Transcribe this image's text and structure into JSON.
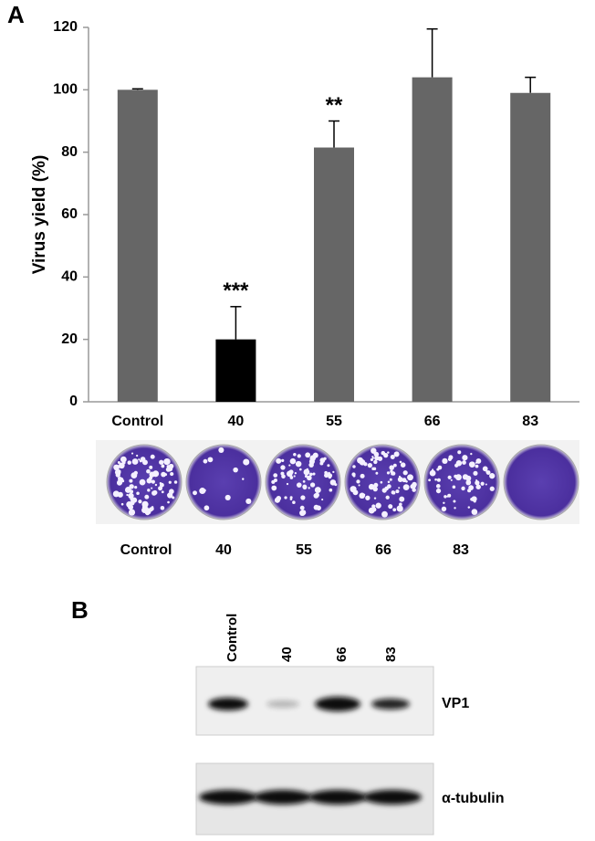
{
  "chart_data": {
    "type": "bar",
    "ylabel": "Virus yield (%)",
    "categories": [
      "Control",
      "40",
      "55",
      "66",
      "83"
    ],
    "values": [
      100,
      20,
      81.5,
      104,
      99
    ],
    "errors": [
      0.3,
      10.5,
      8.5,
      15.5,
      5
    ],
    "colors": [
      "#666666",
      "#000000",
      "#666666",
      "#666666",
      "#666666"
    ],
    "significance": [
      null,
      "***",
      "**",
      null,
      null
    ],
    "ylim": [
      0,
      120
    ],
    "yticks": [
      0,
      20,
      40,
      60,
      80,
      100,
      120
    ]
  },
  "panel_labels": [
    "A",
    "B"
  ],
  "plaque_labels": [
    "Control",
    "40",
    "55",
    "66",
    "83"
  ],
  "blot": {
    "lanes": [
      "Control",
      "40",
      "66",
      "83"
    ],
    "rows": [
      "VP1",
      "α-tubulin"
    ]
  }
}
